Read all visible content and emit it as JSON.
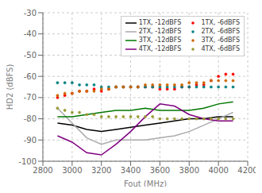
{
  "chart_data": {
    "type": "line",
    "xlabel": "Fout (MHz)",
    "ylabel": "HD2 (dBFS)",
    "xlim": [
      2800,
      4200
    ],
    "ylim": [
      -100,
      -30
    ],
    "xticks": [
      2800,
      3000,
      3200,
      3400,
      3600,
      3800,
      4000,
      4200
    ],
    "yticks": [
      -100,
      -90,
      -80,
      -70,
      -60,
      -50,
      -40,
      -30
    ],
    "grid": true,
    "legend": "upper right",
    "series": [
      {
        "name": "1TX, -12dBFS",
        "color": "#000000",
        "line_style": "solid",
        "marker": "none",
        "x": [
          2900,
          3000,
          3100,
          3200,
          3300,
          3400,
          3500,
          3600,
          3700,
          3800,
          3900,
          4000,
          4100
        ],
        "values": [
          -82,
          -83,
          -85,
          -86,
          -85,
          -84,
          -83,
          -82,
          -81,
          -80,
          -80,
          -79,
          -79
        ]
      },
      {
        "name": "1TX, -6dBFS",
        "color": "#ff0000",
        "line_style": "none",
        "marker": "dot",
        "x": [
          2900,
          2950,
          3000,
          3050,
          3100,
          3150,
          3200,
          3250,
          3300,
          3350,
          3400,
          3450,
          3500,
          3550,
          3600,
          3650,
          3700,
          3750,
          3800,
          3850,
          3900,
          3950,
          4000,
          4050,
          4100
        ],
        "values": [
          -70,
          -69,
          -68,
          -67,
          -67,
          -66,
          -67,
          -66,
          -65,
          -65,
          -65,
          -65,
          -65,
          -65,
          -66,
          -66,
          -66,
          -65,
          -65,
          -64,
          -64,
          -62,
          -60,
          -59,
          -59
        ]
      },
      {
        "name": "2TX, -12dBFS",
        "color": "#aaaaaa",
        "line_style": "solid",
        "marker": "none",
        "x": [
          2900,
          3000,
          3100,
          3200,
          3300,
          3400,
          3500,
          3600,
          3700,
          3800,
          3900,
          4000,
          4100
        ],
        "values": [
          -75,
          -82,
          -89,
          -92,
          -90,
          -90,
          -90,
          -89,
          -88,
          -86,
          -83,
          -80,
          -77
        ]
      },
      {
        "name": "2TX, -6dBFS",
        "color": "#008080",
        "line_style": "none",
        "marker": "dot",
        "x": [
          2900,
          2950,
          3000,
          3050,
          3100,
          3150,
          3200,
          3250,
          3300,
          3350,
          3400,
          3450,
          3500,
          3550,
          3600,
          3650,
          3700,
          3750,
          3800,
          3850,
          3900,
          3950,
          4000,
          4050,
          4100
        ],
        "values": [
          -63,
          -63,
          -63,
          -64,
          -64,
          -64,
          -65,
          -65,
          -65,
          -65,
          -65,
          -65,
          -65,
          -65,
          -65,
          -65,
          -65,
          -65,
          -65,
          -65,
          -65,
          -65,
          -65,
          -65,
          -65
        ]
      },
      {
        "name": "3TX, -12dBFS",
        "color": "#007700",
        "line_style": "solid",
        "marker": "none",
        "x": [
          2900,
          3000,
          3100,
          3200,
          3300,
          3400,
          3500,
          3600,
          3700,
          3800,
          3900,
          4000,
          4100
        ],
        "values": [
          -79,
          -79,
          -78,
          -77,
          -76,
          -76,
          -75,
          -76,
          -76,
          -76,
          -75,
          -73,
          -72
        ]
      },
      {
        "name": "3TX, -6dBFS",
        "color": "#cc6600",
        "line_style": "none",
        "marker": "dot",
        "x": [
          2900,
          2950,
          3000,
          3050,
          3100,
          3150,
          3200,
          3250,
          3300,
          3350,
          3400,
          3450,
          3500,
          3550,
          3600,
          3650,
          3700,
          3750,
          3800,
          3850,
          3900,
          3950,
          4000,
          4050,
          4100
        ],
        "values": [
          -69,
          -68,
          -68,
          -67,
          -67,
          -67,
          -66,
          -66,
          -65,
          -65,
          -65,
          -65,
          -64,
          -64,
          -64,
          -64,
          -64,
          -64,
          -63,
          -63,
          -63,
          -62,
          -62,
          -62,
          -62
        ]
      },
      {
        "name": "4TX, -12dBFS",
        "color": "#800080",
        "line_style": "solid",
        "marker": "none",
        "x": [
          2900,
          3000,
          3100,
          3200,
          3300,
          3400,
          3500,
          3600,
          3700,
          3800,
          3900,
          4000,
          4100
        ],
        "values": [
          -88,
          -91,
          -96,
          -97,
          -92,
          -86,
          -79,
          -73,
          -74,
          -78,
          -80,
          -81,
          -81
        ]
      },
      {
        "name": "4TX, -6dBFS",
        "color": "#999933",
        "line_style": "none",
        "marker": "dot",
        "x": [
          2900,
          2950,
          3000,
          3050,
          3100,
          3150,
          3200,
          3250,
          3300,
          3350,
          3400,
          3450,
          3500,
          3550,
          3600,
          3650,
          3700,
          3750,
          3800,
          3850,
          3900,
          3950,
          4000,
          4050,
          4100
        ],
        "values": [
          -75,
          -76,
          -77,
          -77,
          -78,
          -78,
          -79,
          -79,
          -79,
          -79,
          -79,
          -79,
          -79,
          -79,
          -80,
          -80,
          -80,
          -80,
          -80,
          -80,
          -80,
          -80,
          -80,
          -80,
          -80
        ]
      }
    ]
  }
}
